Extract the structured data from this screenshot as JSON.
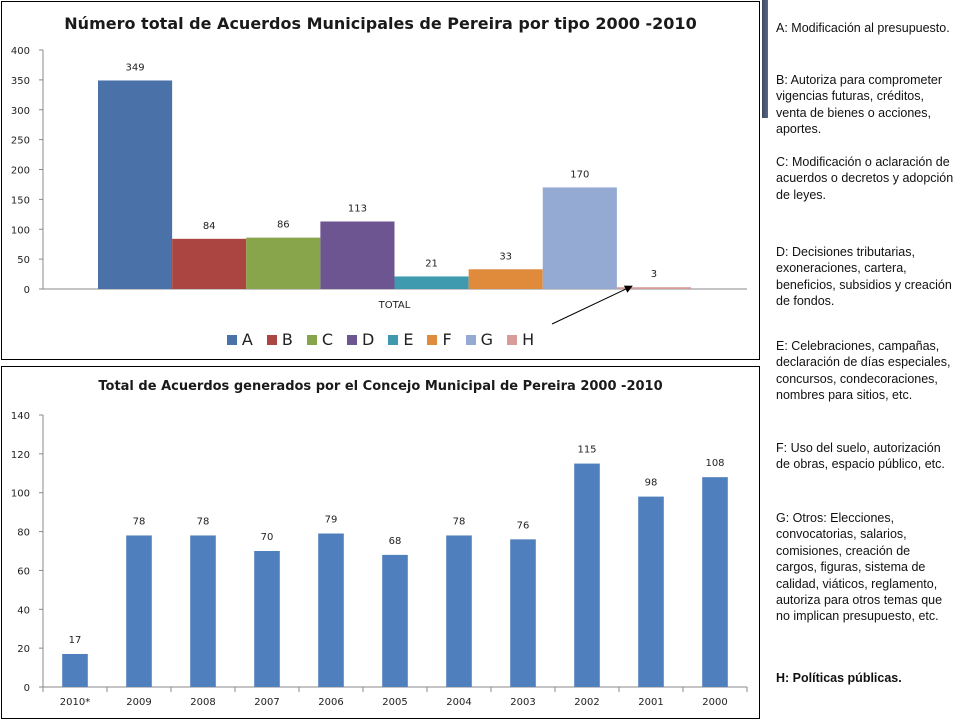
{
  "chart_data": [
    {
      "type": "bar",
      "title": "Número total de Acuerdos Municipales  de Pereira por tipo 2000 -2010",
      "categories": [
        "TOTAL"
      ],
      "ylim": [
        0,
        400
      ],
      "yticks": [
        0,
        50,
        100,
        150,
        200,
        250,
        300,
        350,
        400
      ],
      "grid": false,
      "legend_position": "bottom",
      "series": [
        {
          "name": "A",
          "values": [
            349
          ],
          "color": "#4a72a8"
        },
        {
          "name": "B",
          "values": [
            84
          ],
          "color": "#ab4542"
        },
        {
          "name": "C",
          "values": [
            86
          ],
          "color": "#88a54c"
        },
        {
          "name": "D",
          "values": [
            113
          ],
          "color": "#6d5592"
        },
        {
          "name": "E",
          "values": [
            21
          ],
          "color": "#3f9ab0"
        },
        {
          "name": "F",
          "values": [
            33
          ],
          "color": "#e08a3c"
        },
        {
          "name": "G",
          "values": [
            170
          ],
          "color": "#94aad2"
        },
        {
          "name": "H",
          "values": [
            3
          ],
          "color": "#d79b9a"
        }
      ],
      "annotations": [
        "arrow pointing to H bar"
      ]
    },
    {
      "type": "bar",
      "title": "Total de Acuerdos generados por el Concejo Municipal de Pereira 2000 -2010",
      "categories": [
        "2010*",
        "2009",
        "2008",
        "2007",
        "2006",
        "2005",
        "2004",
        "2003",
        "2002",
        "2001",
        "2000"
      ],
      "values": [
        17,
        78,
        78,
        70,
        79,
        68,
        78,
        76,
        115,
        98,
        108
      ],
      "ylim": [
        0,
        140
      ],
      "yticks": [
        0,
        20,
        40,
        60,
        80,
        100,
        120,
        140
      ],
      "grid": false,
      "color": "#4f80bd"
    }
  ],
  "definitions": [
    {
      "text": "A: Modificación al presupuesto.",
      "bold": false
    },
    {
      "text": "B: Autoriza para comprometer vigencias futuras, créditos, venta de bienes o acciones, aportes.",
      "bold": false
    },
    {
      "text": "C: Modificación o aclaración de acuerdos o decretos y adopción de leyes.",
      "bold": false
    },
    {
      "text": "D: Decisiones tributarias, exoneraciones, cartera, beneficios, subsidios y creación de fondos.",
      "bold": false
    },
    {
      "text": "E: Celebraciones, campañas, declaración de días especiales, concursos, condecoraciones, nombres para sitios, etc.",
      "bold": false
    },
    {
      "text": "F: Uso del suelo, autorización de obras, espacio público, etc.",
      "bold": false
    },
    {
      "text": "G: Otros: Elecciones, convocatorias, salarios, comisiones, creación de cargos, figuras, sistema de calidad, viáticos, reglamento, autoriza para otros temas que no implican presupuesto, etc.",
      "bold": false
    },
    {
      "text": "H: Políticas públicas.",
      "bold": true
    }
  ]
}
